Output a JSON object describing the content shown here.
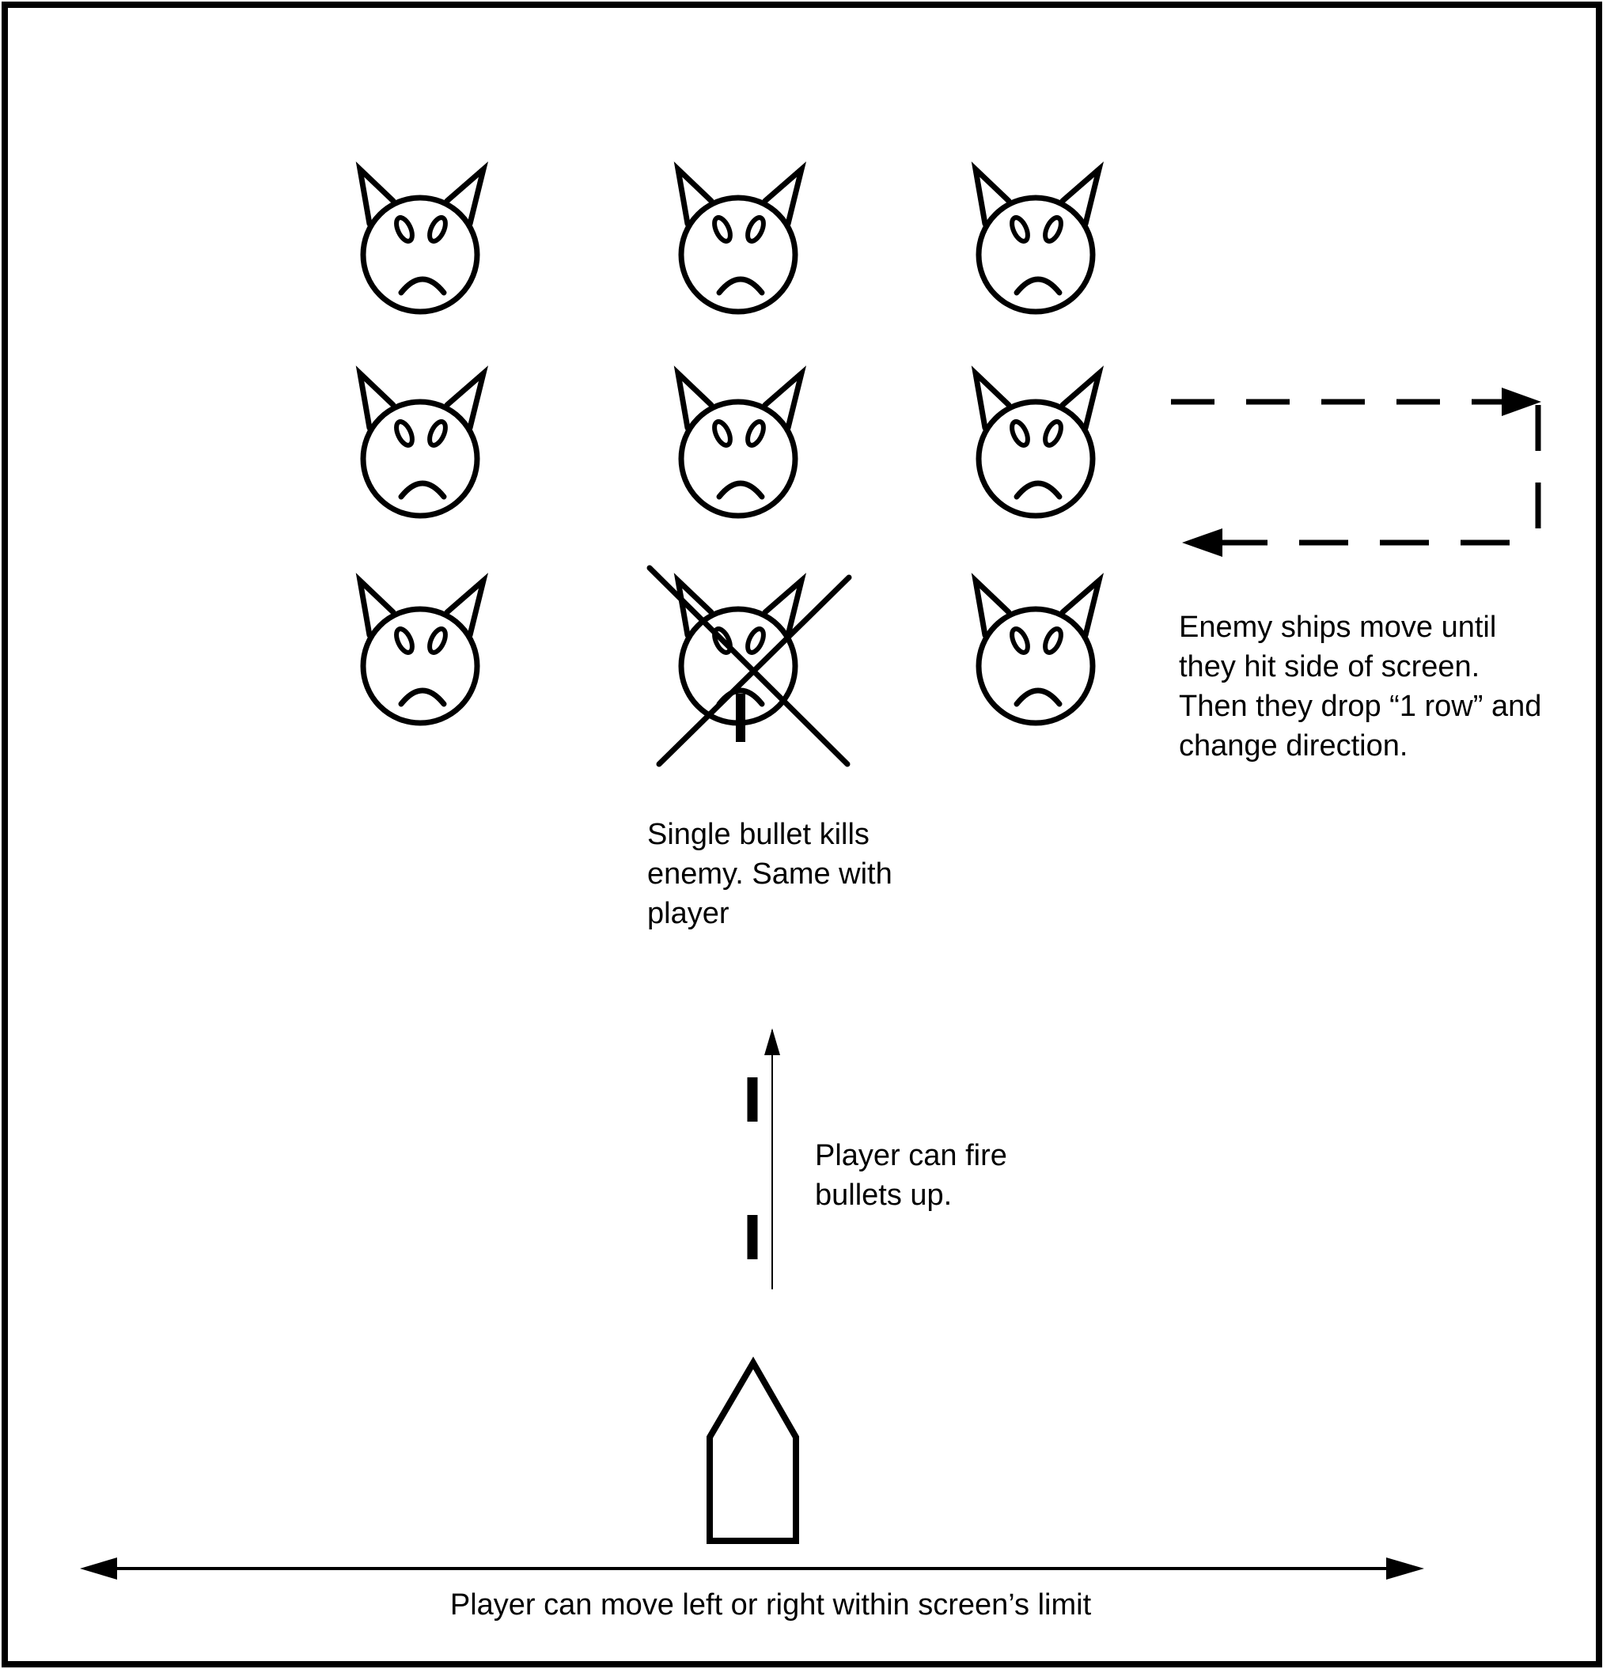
{
  "colors": {
    "background": "#ffffff",
    "ink": "#000000"
  },
  "enemies": {
    "icon": "angry-cat-face-icon",
    "rows": 3,
    "columns": 3,
    "grid": [
      [
        "alive",
        "alive",
        "alive"
      ],
      [
        "alive",
        "alive",
        "alive"
      ],
      [
        "alive",
        "destroyed",
        "alive"
      ]
    ]
  },
  "annotations": {
    "enemy_movement": [
      "Enemy ships move until",
      "they hit side of screen.",
      "Then they drop “1 row” and",
      "change direction."
    ],
    "single_bullet": [
      "Single bullet kills",
      "enemy.  Same with",
      "player"
    ],
    "player_fire": [
      "Player can fire",
      "bullets up."
    ],
    "player_movement": "Player can move left or right within screen’s limit"
  },
  "player": {
    "icon": "player-ship-icon"
  },
  "bullets": {
    "icon": "bullet-icon",
    "count_in_flight": 2,
    "direction": "up"
  }
}
